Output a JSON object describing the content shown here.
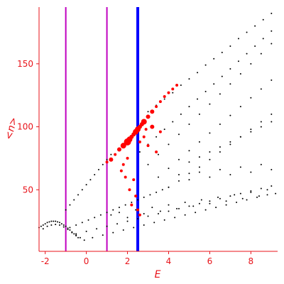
{
  "chart_data": {
    "type": "scatter",
    "title": "",
    "xlabel": "E",
    "ylabel": "<n>",
    "xlim": [
      -2.3,
      9.3
    ],
    "ylim": [
      0,
      195
    ],
    "x_ticks": [
      {
        "value": -2,
        "label": "-2"
      },
      {
        "value": 0,
        "label": "0"
      },
      {
        "value": 2,
        "label": "2"
      },
      {
        "value": 4,
        "label": "4"
      },
      {
        "value": 6,
        "label": "6"
      },
      {
        "value": 8,
        "label": "8"
      }
    ],
    "y_ticks": [
      {
        "value": 50,
        "label": "50"
      },
      {
        "value": 100,
        "label": "100"
      },
      {
        "value": 150,
        "label": "150"
      }
    ],
    "vertical_lines": [
      {
        "x": -1.0,
        "color": "#c000c0",
        "weight": "thin"
      },
      {
        "x": 1.0,
        "color": "#c000c0",
        "weight": "thin"
      },
      {
        "x": 2.5,
        "color": "#0000ff",
        "weight": "thick"
      }
    ],
    "series": [
      {
        "color": "#000000",
        "marker": "small dot",
        "points": [
          [
            -2.3,
            20
          ],
          [
            -2.2,
            21
          ],
          [
            -2.1,
            22
          ],
          [
            -2.0,
            23
          ],
          [
            -1.9,
            24
          ],
          [
            -1.8,
            24.5
          ],
          [
            -1.7,
            25
          ],
          [
            -1.6,
            25
          ],
          [
            -1.5,
            25
          ],
          [
            -1.4,
            24.5
          ],
          [
            -1.3,
            24
          ],
          [
            -1.2,
            23
          ],
          [
            -1.1,
            22
          ],
          [
            -1.0,
            21
          ],
          [
            -0.9,
            19.5
          ],
          [
            -0.8,
            18
          ],
          [
            -0.7,
            16.5
          ],
          [
            -0.6,
            15
          ],
          [
            -0.5,
            13.5
          ],
          [
            -0.4,
            12
          ],
          [
            -2.1,
            19
          ],
          [
            -1.9,
            21
          ],
          [
            -1.7,
            22
          ],
          [
            -1.5,
            22.5
          ],
          [
            -1.3,
            22
          ],
          [
            -1.1,
            20.5
          ],
          [
            -0.9,
            18.5
          ],
          [
            -0.7,
            16
          ],
          [
            -0.5,
            14
          ],
          [
            -0.3,
            12
          ],
          [
            -0.1,
            10
          ],
          [
            -1.0,
            34
          ],
          [
            -0.8,
            38
          ],
          [
            -0.6,
            42
          ],
          [
            -0.4,
            46
          ],
          [
            -0.2,
            50
          ],
          [
            0.0,
            54
          ],
          [
            0.2,
            58
          ],
          [
            0.4,
            62
          ],
          [
            0.6,
            66
          ],
          [
            0.8,
            70
          ],
          [
            1.0,
            74
          ],
          [
            1.2,
            78
          ],
          [
            3.0,
            112
          ],
          [
            3.4,
            117
          ],
          [
            3.8,
            122
          ],
          [
            4.2,
            127
          ],
          [
            4.6,
            133
          ],
          [
            5.0,
            138
          ],
          [
            5.4,
            143
          ],
          [
            5.8,
            149
          ],
          [
            6.2,
            154
          ],
          [
            6.6,
            159
          ],
          [
            7.0,
            164
          ],
          [
            7.4,
            170
          ],
          [
            7.8,
            175
          ],
          [
            8.2,
            180
          ],
          [
            8.6,
            185
          ],
          [
            9.0,
            190
          ],
          [
            2.6,
            80
          ],
          [
            3.0,
            86
          ],
          [
            3.4,
            92
          ],
          [
            3.8,
            98
          ],
          [
            4.2,
            104
          ],
          [
            4.6,
            110
          ],
          [
            5.0,
            116
          ],
          [
            5.4,
            122
          ],
          [
            5.8,
            128
          ],
          [
            6.2,
            134
          ],
          [
            6.6,
            140
          ],
          [
            7.0,
            146
          ],
          [
            7.4,
            152
          ],
          [
            7.8,
            158
          ],
          [
            8.2,
            164
          ],
          [
            8.6,
            170
          ],
          [
            9.0,
            176
          ],
          [
            3.0,
            70
          ],
          [
            3.5,
            78
          ],
          [
            4.0,
            86
          ],
          [
            4.5,
            94
          ],
          [
            5.0,
            102
          ],
          [
            5.5,
            110
          ],
          [
            6.0,
            118
          ],
          [
            6.5,
            126
          ],
          [
            7.0,
            134
          ],
          [
            7.5,
            142
          ],
          [
            8.0,
            150
          ],
          [
            8.5,
            158
          ],
          [
            9.0,
            166
          ],
          [
            3.5,
            60
          ],
          [
            4.0,
            67
          ],
          [
            4.5,
            74
          ],
          [
            5.0,
            81
          ],
          [
            5.5,
            88
          ],
          [
            6.0,
            95
          ],
          [
            6.5,
            102
          ],
          [
            7.0,
            109
          ],
          [
            7.5,
            116
          ],
          [
            8.0,
            123
          ],
          [
            8.5,
            130
          ],
          [
            9.0,
            137
          ],
          [
            4.0,
            52
          ],
          [
            4.5,
            57
          ],
          [
            5.0,
            63
          ],
          [
            5.5,
            68
          ],
          [
            6.0,
            74
          ],
          [
            6.5,
            80
          ],
          [
            7.0,
            86
          ],
          [
            7.5,
            92
          ],
          [
            8.0,
            98
          ],
          [
            8.5,
            104
          ],
          [
            9.0,
            110
          ],
          [
            -0.8,
            20
          ],
          [
            -0.5,
            22
          ],
          [
            -0.2,
            24
          ],
          [
            0.1,
            26
          ],
          [
            0.4,
            28
          ],
          [
            0.7,
            30
          ],
          [
            1.0,
            32
          ],
          [
            1.3,
            34
          ],
          [
            1.6,
            36
          ],
          [
            1.9,
            38
          ],
          [
            2.2,
            40
          ],
          [
            2.5,
            42
          ],
          [
            2.8,
            44
          ],
          [
            3.1,
            46
          ],
          [
            3.4,
            48
          ],
          [
            3.7,
            50
          ],
          [
            4.0,
            52
          ],
          [
            -0.5,
            15
          ],
          [
            0.0,
            17
          ],
          [
            0.5,
            19
          ],
          [
            1.0,
            21
          ],
          [
            1.5,
            23
          ],
          [
            2.0,
            25
          ],
          [
            2.5,
            27
          ],
          [
            3.0,
            29
          ],
          [
            3.5,
            31
          ],
          [
            4.0,
            33
          ],
          [
            4.5,
            35
          ],
          [
            5.0,
            37
          ],
          [
            5.5,
            39
          ],
          [
            6.0,
            41
          ],
          [
            6.5,
            43
          ],
          [
            7.0,
            45
          ],
          [
            7.5,
            47
          ],
          [
            8.0,
            49
          ],
          [
            8.5,
            51
          ],
          [
            9.0,
            53
          ],
          [
            0.3,
            12
          ],
          [
            0.8,
            14
          ],
          [
            1.3,
            16
          ],
          [
            1.8,
            18
          ],
          [
            2.3,
            20
          ],
          [
            2.8,
            22
          ],
          [
            3.3,
            24
          ],
          [
            3.8,
            26
          ],
          [
            4.3,
            28
          ],
          [
            4.8,
            30
          ],
          [
            5.3,
            32
          ],
          [
            5.8,
            34
          ],
          [
            6.3,
            36
          ],
          [
            6.8,
            38
          ],
          [
            7.3,
            40
          ],
          [
            7.8,
            42
          ],
          [
            8.3,
            44
          ],
          [
            8.8,
            46
          ],
          [
            1.2,
            30
          ],
          [
            1.6,
            32
          ],
          [
            2.0,
            28
          ],
          [
            2.4,
            34
          ],
          [
            2.8,
            31
          ],
          [
            3.2,
            36
          ],
          [
            3.6,
            33
          ],
          [
            4.0,
            38
          ],
          [
            4.4,
            35
          ],
          [
            4.8,
            40
          ],
          [
            5.2,
            37
          ],
          [
            5.6,
            42
          ],
          [
            6.0,
            39
          ],
          [
            6.4,
            44
          ],
          [
            6.8,
            41
          ],
          [
            7.2,
            46
          ],
          [
            7.6,
            43
          ],
          [
            8.0,
            48
          ],
          [
            8.4,
            45
          ],
          [
            8.8,
            50
          ],
          [
            9.2,
            47
          ],
          [
            4.5,
            62
          ],
          [
            5.0,
            58
          ],
          [
            5.5,
            64
          ],
          [
            6.0,
            60
          ],
          [
            6.5,
            66
          ],
          [
            7.0,
            62
          ],
          [
            7.5,
            68
          ],
          [
            8.0,
            64
          ],
          [
            8.5,
            70
          ],
          [
            9.0,
            66
          ],
          [
            5.0,
            72
          ],
          [
            5.5,
            76
          ],
          [
            6.0,
            80
          ],
          [
            6.5,
            84
          ],
          [
            7.0,
            88
          ],
          [
            7.5,
            92
          ],
          [
            8.0,
            96
          ],
          [
            8.5,
            100
          ],
          [
            9.0,
            104
          ]
        ]
      },
      {
        "color": "#ff0000",
        "marker": "filled circle",
        "points": [
          [
            1.0,
            72,
            2
          ],
          [
            1.2,
            74,
            3
          ],
          [
            1.4,
            78,
            2
          ],
          [
            1.6,
            82,
            3
          ],
          [
            1.8,
            85,
            4
          ],
          [
            2.0,
            88,
            5
          ],
          [
            2.1,
            90,
            4
          ],
          [
            2.2,
            92,
            3
          ],
          [
            2.3,
            94,
            3
          ],
          [
            2.4,
            96,
            4
          ],
          [
            2.5,
            98,
            4
          ],
          [
            2.6,
            100,
            3
          ],
          [
            2.7,
            102,
            3
          ],
          [
            2.8,
            104,
            4
          ],
          [
            3.0,
            108,
            3
          ],
          [
            3.2,
            112,
            3
          ],
          [
            3.4,
            116,
            2
          ],
          [
            3.6,
            120,
            2
          ],
          [
            3.8,
            124,
            2
          ],
          [
            4.0,
            127,
            2
          ],
          [
            4.2,
            130,
            2
          ],
          [
            4.4,
            133,
            2
          ],
          [
            2.0,
            75,
            2
          ],
          [
            1.8,
            70,
            2
          ],
          [
            1.7,
            65,
            2
          ],
          [
            1.9,
            60,
            2
          ],
          [
            2.3,
            58,
            2
          ],
          [
            2.1,
            50,
            2
          ],
          [
            2.4,
            45,
            2
          ],
          [
            2.2,
            38,
            2
          ],
          [
            2.5,
            34,
            2
          ],
          [
            2.6,
            30,
            2
          ],
          [
            3.0,
            85,
            2
          ],
          [
            3.4,
            80,
            2
          ],
          [
            3.6,
            96,
            2
          ],
          [
            3.2,
            100,
            3
          ],
          [
            2.9,
            98,
            2
          ],
          [
            2.8,
            92,
            2
          ],
          [
            2.6,
            88,
            2
          ]
        ]
      }
    ]
  }
}
